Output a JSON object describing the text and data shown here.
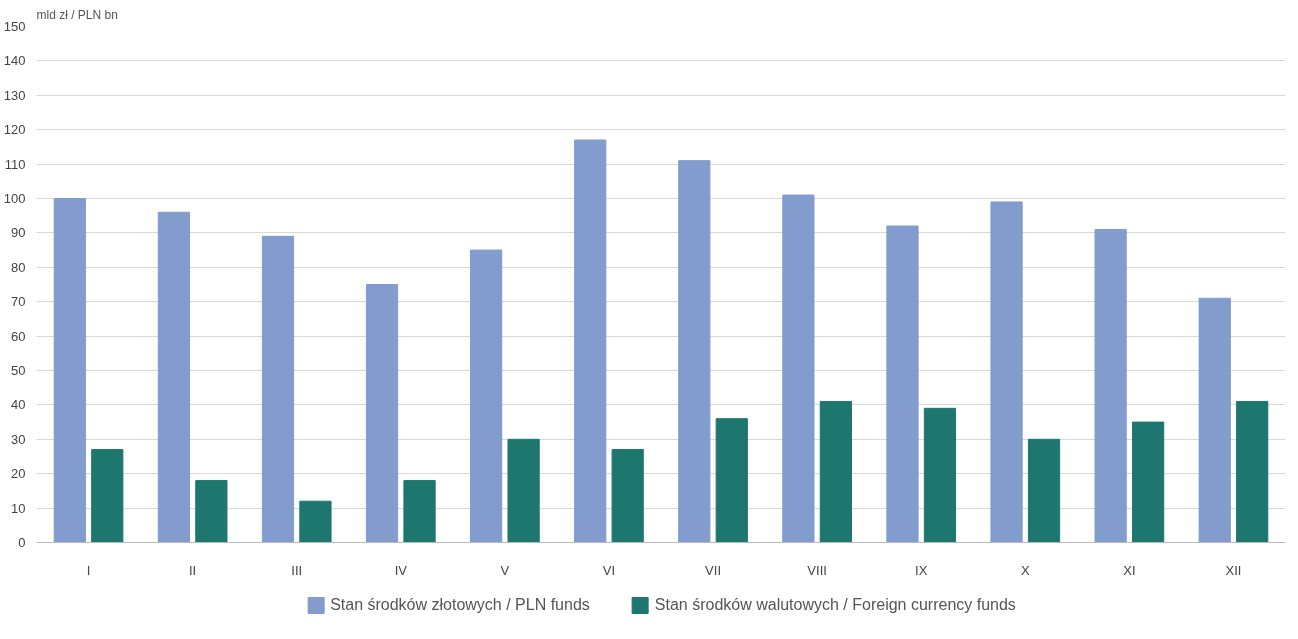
{
  "chart_data": {
    "type": "bar",
    "ylabel": "mld zł / PLN bn",
    "categories": [
      "I",
      "II",
      "III",
      "IV",
      "V",
      "VI",
      "VII",
      "VIII",
      "IX",
      "X",
      "XI",
      "XII"
    ],
    "series": [
      {
        "name": "Stan środków złotowych / PLN funds",
        "color": "#829ccd",
        "values": [
          100,
          96,
          89,
          75,
          85,
          117,
          111,
          101,
          92,
          99,
          91,
          71
        ]
      },
      {
        "name": "Stan środków walutowych / Foreign currency funds",
        "color": "#1e776e",
        "values": [
          27,
          18,
          12,
          18,
          30,
          27,
          36,
          41,
          39,
          30,
          35,
          41
        ]
      }
    ],
    "ylim": [
      0,
      150
    ],
    "yticks": [
      0,
      10,
      20,
      30,
      40,
      50,
      60,
      70,
      80,
      90,
      100,
      110,
      120,
      130,
      140,
      150
    ],
    "grid": "y",
    "legend": "bottom"
  }
}
